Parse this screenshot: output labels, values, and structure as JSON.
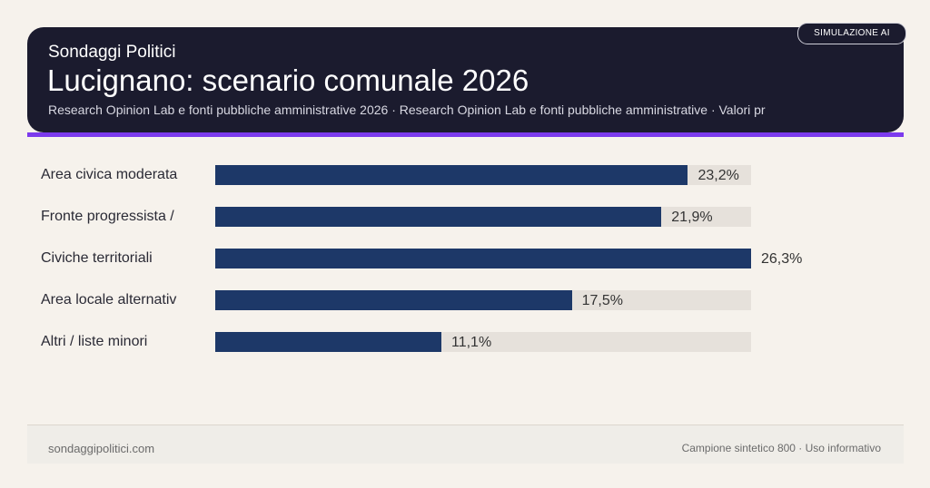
{
  "header": {
    "brand": "Sondaggi Politici",
    "title": "Lucignano: scenario comunale 2026",
    "subtitle": "Research Opinion Lab e fonti pubbliche amministrative 2026 · Research Opinion Lab e fonti pubbliche amministrative · Valori pr",
    "badge": "SIMULAZIONE AI"
  },
  "chart_data": {
    "type": "bar",
    "orientation": "horizontal",
    "categories": [
      "Area civica moderata",
      "Fronte progressista /",
      "Civiche territoriali",
      "Area locale alternativ",
      "Altri / liste minori"
    ],
    "values": [
      23.2,
      21.9,
      26.3,
      17.5,
      11.1
    ],
    "value_labels": [
      "23,2%",
      "21,9%",
      "26,3%",
      "17,5%",
      "11,1%"
    ],
    "xlim": [
      0,
      26.3
    ],
    "grid": false,
    "colors": {
      "bar": "#1d3868",
      "track": "#e6e1db"
    }
  },
  "footer": {
    "left": "sondaggipolitici.com",
    "right": "Campione sintetico 800 · Uso informativo"
  },
  "colors": {
    "header_bg": "#1b1b2e",
    "accent": "#7c3aed",
    "background": "#f6f2ec"
  }
}
